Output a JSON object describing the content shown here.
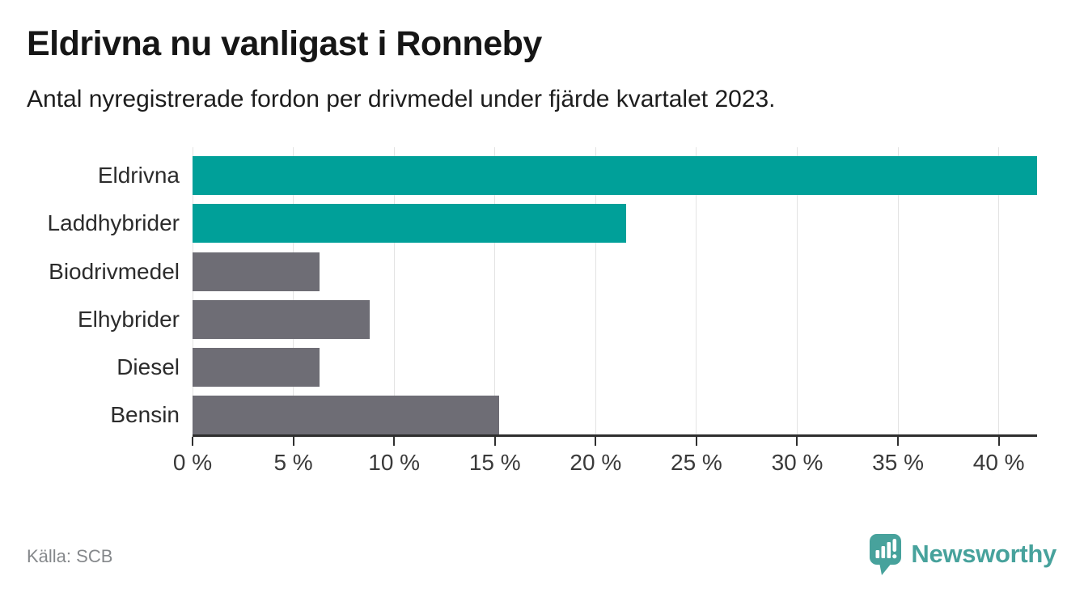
{
  "header": {
    "title": "Eldrivna nu vanligast i Ronneby",
    "subtitle": "Antal nyregistrerade fordon per drivmedel under fjärde kvartalet 2023."
  },
  "footer": {
    "source": "Källa: SCB",
    "brand_name": "Newsworthy"
  },
  "colors": {
    "highlight": "#00a099",
    "neutral": "#6e6d75",
    "brand": "#47a29c",
    "axis": "#2f2f2f",
    "grid": "#e3e3e3"
  },
  "chart_data": {
    "type": "bar",
    "orientation": "horizontal",
    "title": "Eldrivna nu vanligast i Ronneby",
    "subtitle": "Antal nyregistrerade fordon per drivmedel under fjärde kvartalet 2023.",
    "categories": [
      "Eldrivna",
      "Laddhybrider",
      "Biodrivmedel",
      "Elhybrider",
      "Diesel",
      "Bensin"
    ],
    "values": [
      41.9,
      21.5,
      6.3,
      8.8,
      6.3,
      15.2
    ],
    "unit": "%",
    "bar_colors": [
      "#00a099",
      "#00a099",
      "#6e6d75",
      "#6e6d75",
      "#6e6d75",
      "#6e6d75"
    ],
    "xlim": [
      0,
      41.9
    ],
    "x_ticks": [
      0,
      5,
      10,
      15,
      20,
      25,
      30,
      35,
      40
    ],
    "x_tick_labels": [
      "0 %",
      "5 %",
      "10 %",
      "15 %",
      "20 %",
      "25 %",
      "30 %",
      "35 %",
      "40 %"
    ],
    "grid": true,
    "legend": false,
    "source": "Källa: SCB"
  }
}
